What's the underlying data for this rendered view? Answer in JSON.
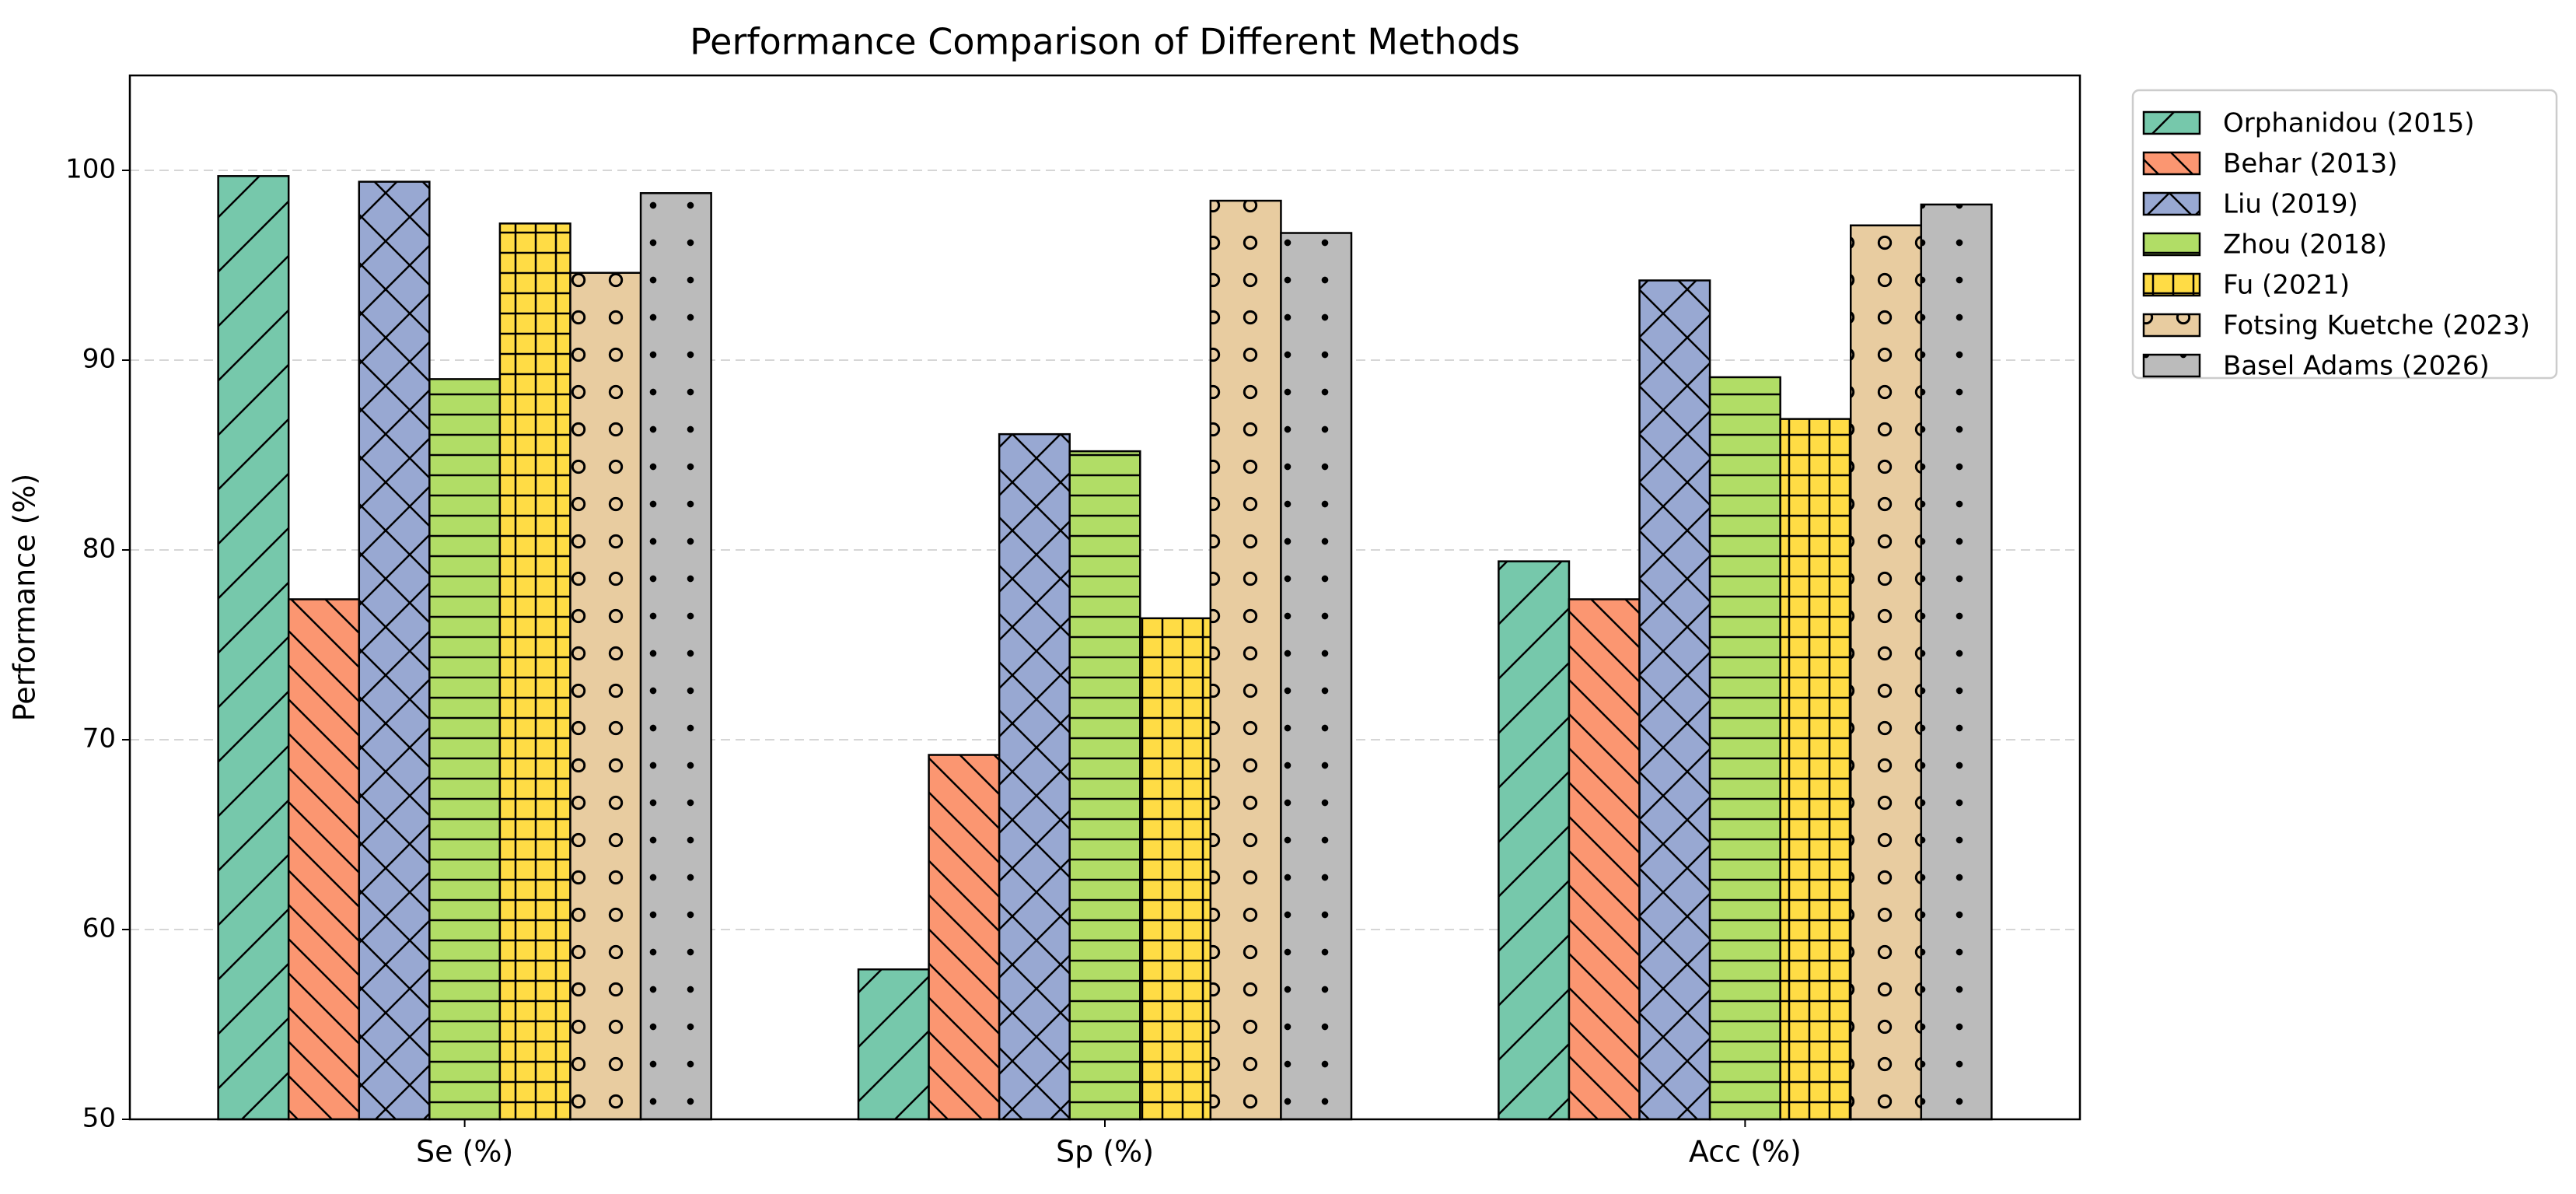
{
  "chart_data": {
    "type": "bar",
    "title": "Performance Comparison of Different Methods",
    "ylabel": "Performance (%)",
    "categories": [
      "Se (%)",
      "Sp (%)",
      "Acc (%)"
    ],
    "series": [
      {
        "name": "Orphanidou (2015)",
        "color": "#76c8ab",
        "hatch": "/",
        "values": [
          99.7,
          57.9,
          79.4
        ]
      },
      {
        "name": "Behar (2013)",
        "color": "#fb9671",
        "hatch": "\\",
        "values": [
          77.4,
          69.2,
          77.4
        ]
      },
      {
        "name": "Liu (2019)",
        "color": "#98a8d2",
        "hatch": "x",
        "values": [
          99.4,
          86.1,
          94.2
        ]
      },
      {
        "name": "Zhou (2018)",
        "color": "#b1dd66",
        "hatch": "-",
        "values": [
          89.0,
          85.2,
          89.1
        ]
      },
      {
        "name": "Fu (2021)",
        "color": "#ffdc45",
        "hatch": "+",
        "values": [
          97.2,
          76.4,
          86.9
        ]
      },
      {
        "name": "Fotsing Kuetche (2023)",
        "color": "#e8cca0",
        "hatch": "o",
        "values": [
          94.6,
          98.4,
          97.1
        ]
      },
      {
        "name": "Basel Adams (2026)",
        "color": "#bbbbbb",
        "hatch": ".",
        "values": [
          98.8,
          96.7,
          98.2
        ]
      }
    ],
    "ylim": [
      50,
      105
    ],
    "yticks": [
      50,
      60,
      70,
      80,
      90,
      100
    ],
    "grid": true,
    "legend": "outside upper right"
  }
}
